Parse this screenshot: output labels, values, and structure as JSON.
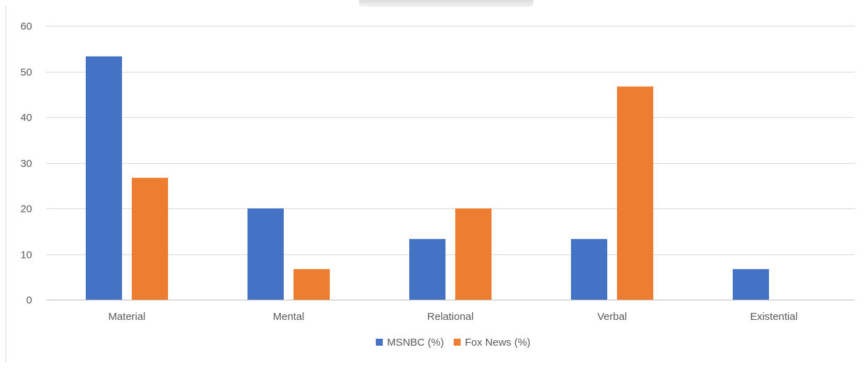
{
  "chart_data": {
    "type": "bar",
    "title": "",
    "xlabel": "",
    "ylabel": "",
    "categories": [
      "Material",
      "Mental",
      "Relational",
      "Verbal",
      "Existential"
    ],
    "series": [
      {
        "name": "MSNBC (%)",
        "color": "#4472C4",
        "values": [
          53.3,
          20.0,
          13.3,
          13.3,
          6.7
        ]
      },
      {
        "name": "Fox News (%)",
        "color": "#ED7D31",
        "values": [
          26.7,
          6.7,
          20.0,
          46.7,
          0
        ]
      }
    ],
    "ylim": [
      0,
      60
    ],
    "yticks": [
      0,
      10,
      20,
      30,
      40,
      50,
      60
    ],
    "grid": true,
    "legend_position": "bottom"
  }
}
